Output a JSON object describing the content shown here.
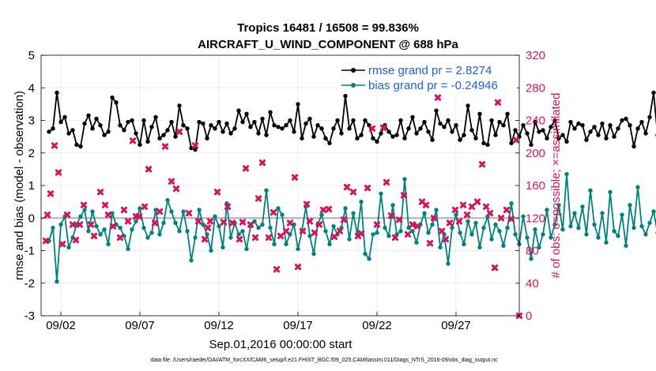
{
  "chart_data": {
    "type": "line",
    "title_line1": "Tropics 16481 / 16508 = 99.836%",
    "title_line2": "AIRCRAFT_U_WIND_COMPONENT @ 688 hPa",
    "ylabel_left": "rmse and bias (model - observation)",
    "ylabel_right": "# of obs: o=possible; ×=assimilated",
    "xlabel": "Sep.01,2016 00:00:00 start",
    "footnote": "data file: /Users/raeder/DAI/ATM_forcXX/CAM6_setup/f.e21.FHIST_BGC.f09_025.CAM6assim.011/Diags_NTrS_2016-09/obs_diag_output.nc",
    "ylim_left": [
      -3,
      5
    ],
    "ylim_right": [
      0,
      320
    ],
    "xlim": [
      0.75,
      31.0
    ],
    "left_ticks": [
      "-3",
      "-2",
      "-1",
      "0",
      "1",
      "2",
      "3",
      "4",
      "5"
    ],
    "right_ticks": [
      "0",
      "40",
      "80",
      "120",
      "160",
      "200",
      "240",
      "280",
      "320"
    ],
    "x_tick_labels": [
      "09/02",
      "09/07",
      "09/12",
      "09/17",
      "09/22",
      "09/27"
    ],
    "x_tick_values": [
      2,
      7,
      12,
      17,
      22,
      27
    ],
    "legend": [
      "rmse grand pr = 2.8274",
      "bias grand pr = -0.24946"
    ],
    "colors": {
      "rmse": "#000000",
      "bias": "#00807f",
      "obs": "#d4145a",
      "zero_line": "#b0b0b0",
      "legend_text": "#1f5fd6"
    },
    "rmse_values": [
      2.65,
      2.75,
      3.85,
      2.95,
      3.1,
      2.6,
      2.7,
      2.25,
      2.2,
      2.9,
      3.15,
      2.75,
      3.05,
      2.85,
      2.55,
      2.65,
      3.7,
      3.55,
      2.85,
      2.7,
      2.95,
      3.0,
      2.6,
      2.25,
      3.0,
      2.35,
      2.8,
      3.1,
      2.45,
      2.55,
      2.7,
      2.95,
      2.5,
      3.45,
      2.85,
      2.75,
      2.15,
      2.1,
      2.95,
      2.9,
      2.45,
      2.85,
      2.75,
      2.95,
      2.65,
      2.9,
      2.6,
      2.75,
      3.3,
      2.95,
      3.2,
      2.8,
      2.95,
      2.6,
      3.05,
      2.55,
      3.25,
      2.85,
      2.8,
      2.75,
      2.85,
      3.0,
      2.65,
      3.5,
      2.45,
      2.9,
      3.05,
      2.5,
      2.85,
      2.75,
      2.45,
      2.3,
      2.75,
      3.0,
      2.6,
      3.75,
      2.75,
      3.0,
      2.45,
      2.55,
      3.0,
      2.85,
      2.45,
      2.35,
      2.6,
      2.85,
      2.65,
      2.5,
      2.55,
      3.0,
      2.45,
      2.75,
      3.1,
      2.6,
      2.75,
      2.95,
      2.65,
      2.4,
      3.3,
      2.9,
      2.8,
      3.0,
      2.65,
      2.85,
      2.4,
      2.55,
      3.45,
      2.7,
      2.45,
      3.2,
      2.3,
      2.25,
      3.0,
      2.55,
      2.95,
      2.85,
      3.2,
      2.3,
      2.7,
      2.5,
      2.85,
      2.6,
      2.25,
      2.95,
      2.65,
      2.7,
      2.45,
      2.8,
      3.0,
      2.45,
      2.55,
      2.35,
      2.95,
      2.75,
      2.9,
      2.85,
      2.4,
      2.65,
      2.8,
      2.55,
      2.9,
      2.45,
      2.85,
      2.5,
      2.75,
      3.0,
      3.05,
      2.85,
      2.2,
      2.75,
      2.95,
      2.6,
      3.1,
      3.85,
      2.55,
      2.5,
      3.05,
      2.7,
      2.9
    ],
    "bias_values": [
      -0.7,
      -0.3,
      -1.95,
      -0.2,
      0.05,
      -0.9,
      -0.6,
      -0.2,
      0.05,
      0.25,
      -0.4,
      0.2,
      -0.25,
      -0.5,
      -0.35,
      -0.8,
      0.15,
      -0.2,
      -0.3,
      -0.55,
      -0.95,
      -0.35,
      -0.1,
      0.3,
      -0.3,
      -0.6,
      -0.45,
      0.25,
      -0.5,
      -0.15,
      0.55,
      0.2,
      -0.15,
      -0.4,
      0.2,
      -0.4,
      -1.3,
      -0.6,
      0.25,
      -0.2,
      -0.5,
      -1.0,
      0.05,
      -0.25,
      -0.9,
      0.45,
      -0.6,
      -0.15,
      -0.5,
      -0.4,
      -0.95,
      -0.25,
      -0.1,
      -0.3,
      -0.2,
      0.85,
      -0.3,
      -0.8,
      0.3,
      0.1,
      -0.8,
      -0.5,
      -0.2,
      -0.95,
      -0.4,
      0.35,
      -0.55,
      -1.1,
      -0.2,
      0.1,
      -0.4,
      -0.8,
      -0.25,
      -0.5,
      -0.3,
      0.3,
      -0.65,
      0.15,
      -0.5,
      0.5,
      -1.1,
      -1.25,
      -0.5,
      -0.45,
      0.75,
      -0.3,
      -0.55,
      0.4,
      -0.5,
      -0.4,
      1.2,
      -0.3,
      -0.4,
      -0.75,
      -0.2,
      0.15,
      -0.45,
      -0.2,
      0.25,
      -0.9,
      -0.5,
      -1.4,
      -0.3,
      0.1,
      -0.45,
      -0.8,
      -0.1,
      -0.5,
      -0.15,
      -0.9,
      -0.3,
      0.05,
      -0.65,
      -0.2,
      -0.4,
      -0.85,
      -0.3,
      0.45,
      -0.5,
      -0.8,
      0.05,
      -0.6,
      -1.25,
      -0.35,
      -0.9,
      -0.5,
      0.25,
      -0.6,
      -0.2,
      0.4,
      -0.35,
      1.35,
      -0.25,
      0.15,
      -0.3,
      0.35,
      -0.5,
      0.85,
      -0.2,
      -0.6,
      0.15,
      -0.75,
      0.8,
      -0.4,
      -0.55,
      0.1,
      -0.85,
      0.4,
      -0.3,
      0.95,
      -0.25,
      -0.5,
      -0.15,
      0.2,
      -0.45,
      -0.9,
      -1.15,
      -0.25,
      -0.7,
      -0.75,
      -0.4
    ],
    "obs_assimilated": [
      [
        1.05,
        92
      ],
      [
        1.15,
        124
      ],
      [
        1.35,
        150
      ],
      [
        1.6,
        209
      ],
      [
        1.85,
        176
      ],
      [
        2.1,
        88
      ],
      [
        2.4,
        124
      ],
      [
        2.75,
        112
      ],
      [
        2.95,
        93
      ],
      [
        3.2,
        112
      ],
      [
        3.45,
        136
      ],
      [
        3.9,
        112
      ],
      [
        4.1,
        98
      ],
      [
        4.5,
        152
      ],
      [
        4.8,
        136
      ],
      [
        5.0,
        124
      ],
      [
        5.3,
        110
      ],
      [
        5.75,
        96
      ],
      [
        6.0,
        130
      ],
      [
        6.25,
        116
      ],
      [
        6.55,
        215
      ],
      [
        6.75,
        122
      ],
      [
        6.95,
        122
      ],
      [
        7.3,
        134
      ],
      [
        7.55,
        180
      ],
      [
        7.95,
        114
      ],
      [
        8.25,
        128
      ],
      [
        8.6,
        208
      ],
      [
        9.0,
        165
      ],
      [
        9.3,
        156
      ],
      [
        9.5,
        226
      ],
      [
        10.1,
        126
      ],
      [
        10.5,
        209
      ],
      [
        10.7,
        116
      ],
      [
        11.1,
        94
      ],
      [
        11.3,
        108
      ],
      [
        11.45,
        116
      ],
      [
        11.9,
        152
      ],
      [
        12.3,
        115
      ],
      [
        12.55,
        134
      ],
      [
        12.85,
        114
      ],
      [
        13.3,
        94
      ],
      [
        13.5,
        115
      ],
      [
        13.7,
        181
      ],
      [
        14.0,
        112
      ],
      [
        14.3,
        96
      ],
      [
        14.5,
        144
      ],
      [
        14.75,
        188
      ],
      [
        15.15,
        96
      ],
      [
        15.45,
        127
      ],
      [
        15.65,
        57
      ],
      [
        15.9,
        98
      ],
      [
        16.25,
        104
      ],
      [
        16.5,
        114
      ],
      [
        16.8,
        170
      ],
      [
        17.0,
        60
      ],
      [
        17.3,
        104
      ],
      [
        17.55,
        137
      ],
      [
        17.75,
        116
      ],
      [
        18.05,
        102
      ],
      [
        18.35,
        112
      ],
      [
        18.6,
        130
      ],
      [
        18.95,
        131
      ],
      [
        19.3,
        97
      ],
      [
        19.65,
        104
      ],
      [
        19.9,
        118
      ],
      [
        20.1,
        158
      ],
      [
        20.5,
        152
      ],
      [
        20.8,
        98
      ],
      [
        21.0,
        101
      ],
      [
        21.4,
        157
      ],
      [
        21.7,
        230
      ],
      [
        22.0,
        112
      ],
      [
        22.4,
        231
      ],
      [
        22.6,
        164
      ],
      [
        22.9,
        123
      ],
      [
        23.15,
        96
      ],
      [
        23.4,
        118
      ],
      [
        23.7,
        148
      ],
      [
        23.95,
        100
      ],
      [
        24.25,
        112
      ],
      [
        24.55,
        110
      ],
      [
        24.85,
        140
      ],
      [
        25.1,
        136
      ],
      [
        25.35,
        89
      ],
      [
        25.6,
        120
      ],
      [
        25.85,
        268
      ],
      [
        26.1,
        104
      ],
      [
        26.35,
        94
      ],
      [
        26.6,
        114
      ],
      [
        26.95,
        130
      ],
      [
        27.2,
        116
      ],
      [
        27.45,
        136
      ],
      [
        27.7,
        124
      ],
      [
        28.0,
        134
      ],
      [
        28.35,
        140
      ],
      [
        28.65,
        186
      ],
      [
        28.9,
        134
      ],
      [
        29.15,
        126
      ],
      [
        29.45,
        59
      ],
      [
        29.65,
        262
      ],
      [
        29.85,
        120
      ],
      [
        30.2,
        130
      ],
      [
        30.5,
        119
      ],
      [
        30.8,
        216
      ],
      [
        31.0,
        0
      ]
    ]
  }
}
